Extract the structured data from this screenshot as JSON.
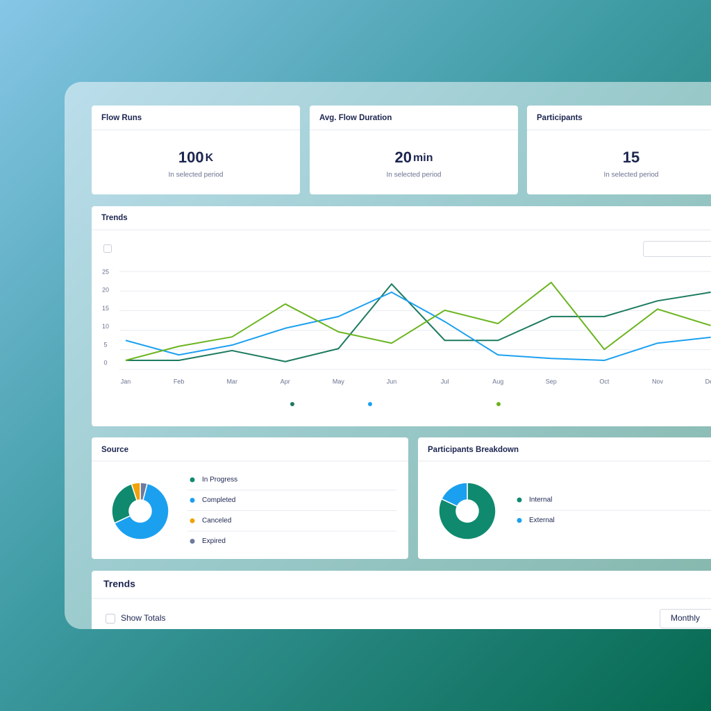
{
  "stats": [
    {
      "title": "Flow Runs",
      "value": 100,
      "unit": "K",
      "note": "In selected period"
    },
    {
      "title": "Avg. Flow Duration",
      "value": 20,
      "unit": "min",
      "note": "In selected period"
    },
    {
      "title": "Participants",
      "value": 15,
      "note": "In selected period"
    }
  ],
  "chart_data": [
    {
      "type": "line",
      "title": "Trends",
      "categories": [
        "Jan",
        "Feb",
        "Mar",
        "Apr",
        "May",
        "Jun",
        "Jul",
        "Aug",
        "Sep",
        "Oct",
        "Nov",
        "Dec"
      ],
      "series": [
        {
          "color": "#1b7a5f",
          "values": [
            2.3,
            2.3,
            4.8,
            2,
            5.3,
            21.8,
            7.4,
            7.4,
            13.5,
            13.5,
            17.5,
            19.7
          ]
        },
        {
          "color": "#1ba0f0",
          "values": [
            7.4,
            3.7,
            6.2,
            10.5,
            13.5,
            19.7,
            12.2,
            3.7,
            2.8,
            2.3,
            6.7,
            8.2
          ]
        },
        {
          "color": "#6ab41e",
          "values": [
            2.3,
            5.9,
            8.3,
            16.7,
            9.6,
            6.7,
            15.1,
            11.7,
            22.2,
            5.1,
            15.4,
            11.2
          ]
        }
      ],
      "ylim": [
        0,
        25
      ],
      "yticks": [
        0,
        5,
        10,
        15,
        20,
        25
      ],
      "grid": true
    },
    {
      "type": "donut",
      "title": "Source",
      "categories": [
        "In Progress",
        "Completed",
        "Canceled",
        "Expired"
      ],
      "values": [
        27,
        64,
        5,
        4
      ],
      "colors": [
        "#0f8a6e",
        "#1ba0f0",
        "#f0a30a",
        "#6e7a9e"
      ]
    },
    {
      "type": "donut",
      "title": "Participants Breakdown",
      "categories": [
        "Internal",
        "External"
      ],
      "values": [
        82,
        18
      ],
      "colors": [
        "#0f8a6e",
        "#1ba0f0"
      ]
    }
  ],
  "trends_panel": {
    "title": "Trends",
    "show_totals": "Show Totals",
    "period": "Monthly"
  }
}
